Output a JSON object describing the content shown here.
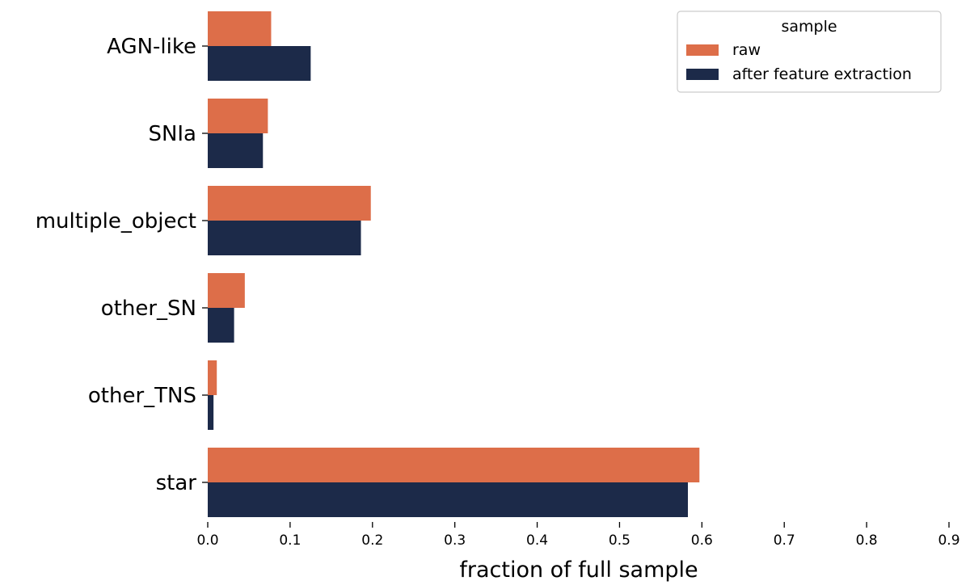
{
  "chart_data": {
    "type": "bar",
    "orientation": "horizontal",
    "categories": [
      "AGN-like",
      "SNIa",
      "multiple_object",
      "other_SN",
      "other_TNS",
      "star"
    ],
    "series": [
      {
        "name": "raw",
        "color": "#dd6e49",
        "values": [
          0.077,
          0.073,
          0.198,
          0.045,
          0.011,
          0.597
        ]
      },
      {
        "name": "after feature extraction",
        "color": "#1c2a49",
        "values": [
          0.125,
          0.067,
          0.186,
          0.032,
          0.007,
          0.583
        ]
      }
    ],
    "xlabel": "fraction of full sample",
    "xlim": [
      0.0,
      0.9
    ],
    "xticks": [
      "0.0",
      "0.1",
      "0.2",
      "0.3",
      "0.4",
      "0.5",
      "0.6",
      "0.7",
      "0.8",
      "0.9"
    ],
    "legend": {
      "title": "sample",
      "placement": "top-right"
    },
    "grid": false
  }
}
